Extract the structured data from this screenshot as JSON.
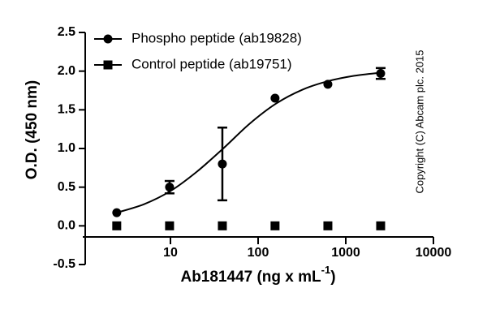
{
  "chart_data": {
    "type": "scatter",
    "ylabel": "O.D. (450 nm)",
    "xlabel": [
      "Ab181447 (ng x mL",
      "-1",
      ")"
    ],
    "annotation": "Copyright (C) Abcam plc. 2015",
    "xlog": true,
    "xlim": [
      1,
      10000
    ],
    "xticks": [
      10,
      100,
      1000,
      10000
    ],
    "ylim": [
      -0.5,
      2.5
    ],
    "yticks": [
      -0.5,
      {
        "value": 0,
        "label": "0.0"
      },
      0.5,
      {
        "value": 1,
        "label": "1.0"
      },
      1.5,
      {
        "value": 2,
        "label": "2.0"
      },
      2.5
    ],
    "series": [
      {
        "name": "Phospho peptide (ab19828)",
        "color": "#000000",
        "marker": "circle",
        "x": [
          2.44,
          9.77,
          39.1,
          156,
          625,
          2500
        ],
        "values": [
          0.17,
          0.5,
          0.8,
          1.65,
          1.83,
          1.97
        ],
        "errors": [
          null,
          0.08,
          0.47,
          null,
          null,
          0.07
        ]
      },
      {
        "name": "Control peptide (ab19751)",
        "color": "#000000",
        "marker": "square",
        "x": [
          2.44,
          9.77,
          39.1,
          156,
          625,
          2500
        ],
        "values": [
          0,
          0,
          0,
          0,
          0,
          0
        ]
      }
    ],
    "curve": {
      "color": "#000000",
      "x": [
        2.44,
        5,
        10,
        20,
        40,
        80,
        160,
        320,
        625,
        1250,
        2500
      ],
      "values": [
        0.17,
        0.28,
        0.45,
        0.7,
        1.0,
        1.32,
        1.58,
        1.76,
        1.87,
        1.94,
        1.98
      ]
    }
  }
}
